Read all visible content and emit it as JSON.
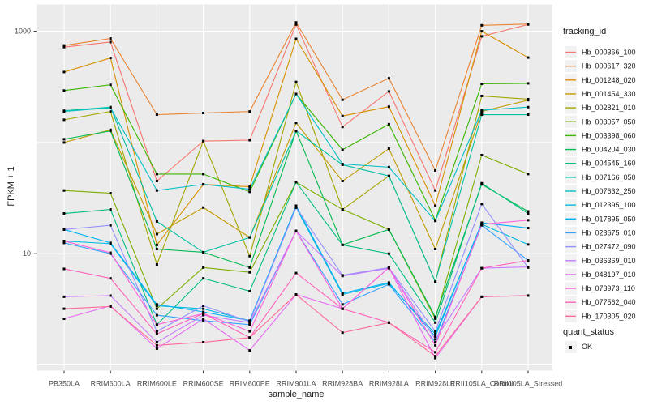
{
  "figure": {
    "y_axis_title": "FPKM + 1",
    "x_axis_title": "sample_name",
    "legend": {
      "color_title": "tracking_id",
      "shape_title": "quant_status",
      "shape_items": [
        {
          "label": "OK"
        }
      ]
    }
  },
  "chart_data": {
    "type": "line",
    "title": "",
    "xlabel": "sample_name",
    "ylabel": "FPKM + 1",
    "y_scale": "log10",
    "ylim": [
      0.9,
      1700
    ],
    "grid": "major-white-on-grey",
    "legend_position": "right",
    "panel_bg": "#EBEBEB",
    "grid_color": "#FFFFFF",
    "point_color": "#000000",
    "point_shape": "small-black-square",
    "quant_status_value": "OK",
    "x_categories": [
      "PB350LA",
      "RRIM600LA",
      "RRIM600LE",
      "RRIM600SE",
      "RRIM600PE",
      "RRIM901LA",
      "RRIM928BA",
      "RRIM928LA",
      "RRIM928LE",
      "RRII105LA_Control",
      "RRII105LA_Stressed"
    ],
    "y_ticks": [
      {
        "value": 1000,
        "label": "1000"
      },
      {
        "value": 10,
        "label": "10"
      }
    ],
    "gridlines_at": [
      1,
      10,
      100,
      1000
    ],
    "series": [
      {
        "name": "Hb_000366_100",
        "color": "#F8766D",
        "values": [
          720,
          800,
          45,
          103,
          105,
          1150,
          138,
          288,
          37,
          900,
          1150
        ]
      },
      {
        "name": "Hb_000617_320",
        "color": "#EA8331",
        "values": [
          745,
          860,
          178,
          184,
          190,
          1200,
          242,
          378,
          56,
          1130,
          1160
        ]
      },
      {
        "name": "Hb_001248_020",
        "color": "#D89000",
        "values": [
          430,
          575,
          12,
          42,
          40,
          855,
          173,
          210,
          27,
          1000,
          580
        ]
      },
      {
        "name": "Hb_001454_330",
        "color": "#C09B00",
        "values": [
          100,
          130,
          15,
          26,
          14,
          150,
          45,
          88,
          11,
          190,
          240
        ]
      },
      {
        "name": "Hb_002821_010",
        "color": "#A3A500",
        "values": [
          160,
          190,
          8,
          103,
          9.5,
          350,
          25,
          50,
          5.6,
          262,
          245
        ]
      },
      {
        "name": "Hb_003057_050",
        "color": "#7CAE00",
        "values": [
          37,
          35,
          3.2,
          7.5,
          6.8,
          44,
          25,
          16.5,
          2.6,
          77,
          52
        ]
      },
      {
        "name": "Hb_003398_060",
        "color": "#39B600",
        "values": [
          293,
          330,
          52,
          52,
          36,
          273,
          86,
          146,
          20,
          337,
          340
        ]
      },
      {
        "name": "Hb_004204_030",
        "color": "#00BB4E",
        "values": [
          107,
          127,
          11,
          10.3,
          7.5,
          127,
          12,
          16.5,
          2.7,
          42,
          24
        ]
      },
      {
        "name": "Hb_004545_160",
        "color": "#00BF7D",
        "values": [
          23,
          25,
          2.3,
          6,
          4.6,
          44,
          12,
          10,
          2.4,
          43,
          23
        ]
      },
      {
        "name": "Hb_007166_050",
        "color": "#00C1A3",
        "values": [
          193,
          208,
          19.5,
          10.3,
          14,
          127,
          63,
          50,
          5.6,
          178,
          178
        ]
      },
      {
        "name": "Hb_007632_250",
        "color": "#00BFC4",
        "values": [
          190,
          205,
          37,
          42,
          38,
          273,
          64,
          60,
          19.7,
          195,
          208
        ]
      },
      {
        "name": "Hb_012395_100",
        "color": "#00BAE0",
        "values": [
          13,
          12.3,
          3.4,
          3.2,
          2.5,
          26,
          4.3,
          5.4,
          1.9,
          18.4,
          12.1
        ]
      },
      {
        "name": "Hb_017895_050",
        "color": "#00B0F6",
        "values": [
          16.5,
          12.5,
          3.5,
          3.0,
          2.5,
          27,
          4.4,
          5.5,
          1.8,
          19,
          17
        ]
      },
      {
        "name": "Hb_023675_010",
        "color": "#35A2FF",
        "values": [
          12.5,
          10,
          2.8,
          2.5,
          2.3,
          16,
          3.5,
          5.3,
          1.6,
          18,
          8.7
        ]
      },
      {
        "name": "Hb_027472_090",
        "color": "#9590FF",
        "values": [
          16.5,
          18,
          2.0,
          3.4,
          2.45,
          26,
          6.4,
          7.5,
          2.0,
          28,
          7.5
        ]
      },
      {
        "name": "Hb_036369_010",
        "color": "#C77CFF",
        "values": [
          4.1,
          4.2,
          1.6,
          2.8,
          2.4,
          16,
          6.3,
          7.4,
          1.7,
          7.4,
          7.6
        ]
      },
      {
        "name": "Hb_048197_010",
        "color": "#E76BF3",
        "values": [
          2.6,
          3.4,
          1.4,
          2.6,
          1.35,
          4.3,
          3.2,
          7.5,
          1.15,
          4.1,
          4.2
        ]
      },
      {
        "name": "Hb_073973_110",
        "color": "#FA62DB",
        "values": [
          13,
          10.2,
          2.3,
          2.9,
          2.0,
          16,
          3.2,
          7.5,
          1.5,
          18.4,
          20
        ]
      },
      {
        "name": "Hb_077562_040",
        "color": "#FF62BC",
        "values": [
          7.3,
          6,
          1.9,
          2.9,
          1.76,
          6.7,
          3.2,
          2.4,
          1.3,
          7.4,
          8.7
        ]
      },
      {
        "name": "Hb_170305_020",
        "color": "#FF6A98",
        "values": [
          3.2,
          3.35,
          1.5,
          1.6,
          1.76,
          4.3,
          1.95,
          2.4,
          1.2,
          4.1,
          4.2
        ]
      }
    ]
  }
}
